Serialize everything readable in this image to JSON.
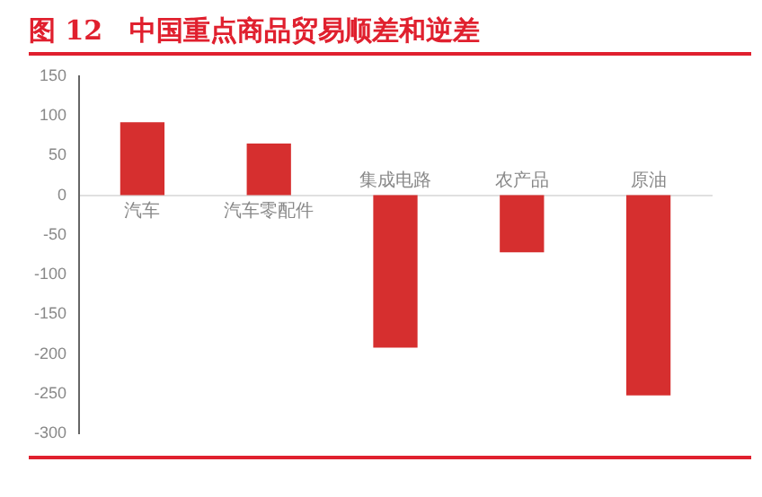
{
  "chart_data": {
    "type": "bar",
    "title": "图 12　中国重点商品贸易顺差和逆差",
    "categories": [
      "汽车",
      "汽车零配件",
      "集成电路",
      "农产品",
      "原油"
    ],
    "values": [
      92,
      65,
      -192,
      -72,
      -252
    ],
    "color": "#d62f2f",
    "ylim": [
      -300,
      150
    ],
    "yticks": [
      -300,
      -250,
      -200,
      -150,
      -100,
      -50,
      0,
      50,
      100,
      150
    ],
    "grid": false
  }
}
